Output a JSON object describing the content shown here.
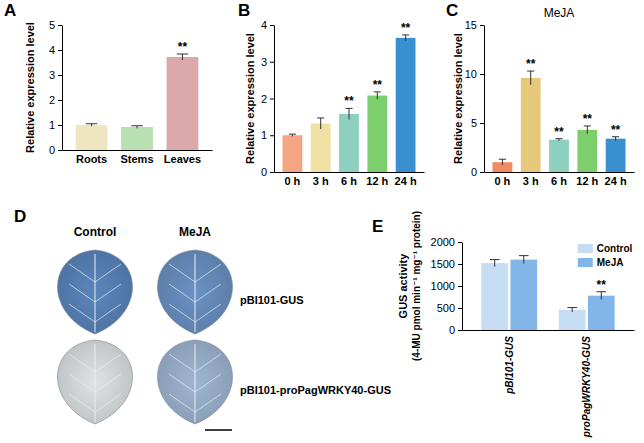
{
  "chart_data": [
    {
      "panel": "A",
      "type": "bar",
      "categories": [
        "Roots",
        "Stems",
        "Leaves"
      ],
      "values": [
        1.0,
        0.92,
        3.72
      ],
      "errors": [
        0.05,
        0.05,
        0.12
      ],
      "stars": [
        null,
        null,
        "**"
      ],
      "colors": [
        "#efe5c1",
        "#b9e0b3",
        "#dca9ab"
      ],
      "ylabel": "Relative expression level",
      "ylim": [
        0,
        5
      ],
      "yticks": [
        0,
        1,
        2,
        3,
        4,
        5
      ]
    },
    {
      "panel": "B",
      "type": "bar",
      "categories": [
        "0 h",
        "3 h",
        "6 h",
        "12 h",
        "24 h"
      ],
      "values": [
        1.0,
        1.32,
        1.58,
        2.08,
        3.65
      ],
      "errors": [
        0.03,
        0.15,
        0.15,
        0.1,
        0.08
      ],
      "stars": [
        null,
        null,
        "**",
        "**",
        "**"
      ],
      "colors": [
        "#f4a582",
        "#f0e1a3",
        "#8dd0c0",
        "#7ccf6c",
        "#3a8fd0"
      ],
      "ylabel": "Relative expression level",
      "ylim": [
        0,
        4
      ],
      "yticks": [
        0,
        1,
        2,
        3,
        4
      ]
    },
    {
      "panel": "C",
      "type": "bar",
      "title": "MeJA",
      "categories": [
        "0 h",
        "3 h",
        "6 h",
        "12 h",
        "24 h"
      ],
      "values": [
        1.0,
        9.6,
        3.3,
        4.3,
        3.4
      ],
      "errors": [
        0.3,
        0.7,
        0.1,
        0.4,
        0.2
      ],
      "stars": [
        null,
        "**",
        "**",
        "**",
        "**"
      ],
      "colors": [
        "#f08a60",
        "#e6c87a",
        "#8dd0c0",
        "#7ccf6c",
        "#3a8fd0"
      ],
      "ylabel": "Relative expression level",
      "ylim": [
        0,
        15
      ],
      "yticks": [
        0,
        5,
        10,
        15
      ]
    },
    {
      "panel": "D",
      "type": "image",
      "columns": [
        "Control",
        "MeJA"
      ],
      "rows": [
        "pBI101-GUS",
        "pBI101-proPagWRKY40-GUS"
      ]
    },
    {
      "panel": "E",
      "type": "bar",
      "categories": [
        "pBI101-GUS",
        "proPagWRKY40-GUS"
      ],
      "series": [
        {
          "name": "Control",
          "color": "#c6ddf3",
          "values": [
            1520,
            460
          ],
          "errors": [
            80,
            50
          ]
        },
        {
          "name": "MeJA",
          "color": "#82b6e8",
          "values": [
            1600,
            780
          ],
          "errors": [
            90,
            90
          ],
          "stars": [
            null,
            "**"
          ]
        }
      ],
      "ylabel": [
        "GUS activity",
        "(4-MU pmol min⁻¹ mg⁻¹ protein)"
      ],
      "ylim": [
        0,
        2000
      ],
      "yticks": [
        0,
        500,
        1000,
        1500,
        2000
      ],
      "legend": "upper right"
    }
  ]
}
